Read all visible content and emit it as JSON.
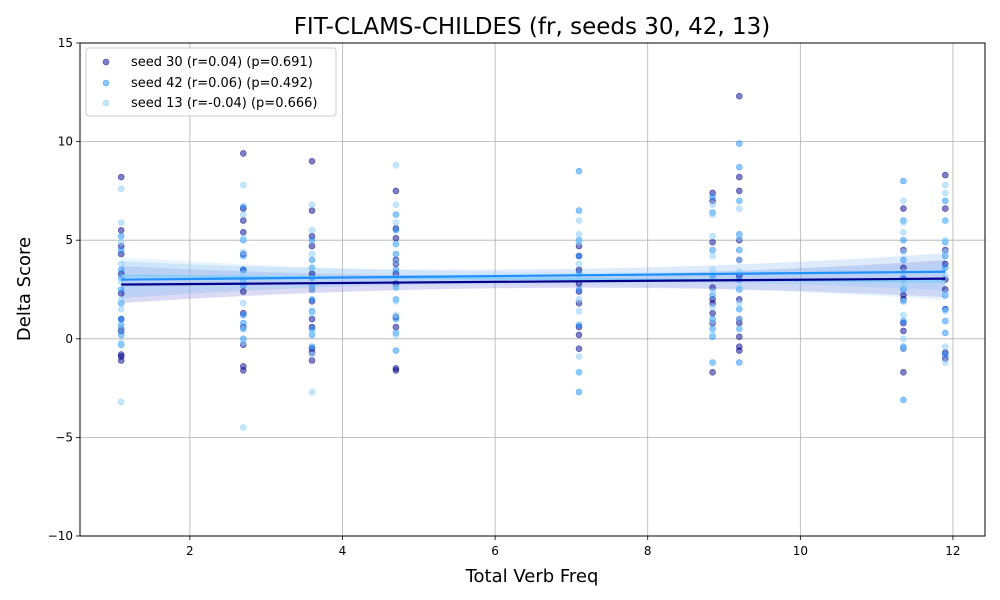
{
  "chart_data": {
    "type": "scatter",
    "title": "FIT-CLAMS-CHILDES (fr, seeds 30, 42, 13)",
    "xlabel": "Total Verb Freq",
    "ylabel": "Delta Score",
    "xlim": [
      0.56,
      12.42
    ],
    "ylim": [
      -10,
      15
    ],
    "xticks": [
      2,
      4,
      6,
      8,
      10,
      12
    ],
    "yticks": [
      -10,
      -5,
      0,
      5,
      10,
      15
    ],
    "grid": true,
    "legend_position": "top-left",
    "series": [
      {
        "name": "seed 30 (r=0.04) (p=0.691)",
        "color": "#00008B",
        "regression": {
          "x": [
            1.1,
            11.9
          ],
          "y": [
            2.75,
            3.05
          ]
        },
        "x": [
          1.1,
          1.1,
          1.1,
          1.1,
          1.1,
          1.1,
          1.1,
          1.1,
          1.1,
          1.1,
          1.1,
          1.1,
          2.7,
          2.7,
          2.7,
          2.7,
          2.7,
          2.7,
          2.7,
          2.7,
          2.7,
          2.7,
          2.7,
          2.7,
          3.6,
          3.6,
          3.6,
          3.6,
          3.6,
          3.6,
          3.6,
          3.6,
          3.6,
          3.6,
          3.6,
          3.6,
          4.7,
          4.7,
          4.7,
          4.7,
          4.7,
          4.7,
          4.7,
          4.7,
          4.7,
          4.7,
          4.7,
          7.1,
          7.1,
          7.1,
          7.1,
          7.1,
          7.1,
          7.1,
          7.1,
          7.1,
          8.85,
          8.85,
          8.85,
          8.85,
          8.85,
          8.85,
          8.85,
          8.85,
          8.85,
          9.2,
          9.2,
          9.2,
          9.2,
          9.2,
          9.2,
          9.2,
          9.2,
          9.2,
          9.2,
          9.2,
          9.2,
          11.35,
          11.35,
          11.35,
          11.35,
          11.35,
          11.35,
          11.35,
          11.35,
          11.35,
          11.35,
          11.9,
          11.9,
          11.9,
          11.9,
          11.9,
          11.9,
          11.9,
          11.9,
          11.9
        ],
        "y": [
          8.2,
          5.5,
          4.7,
          4.3,
          3.3,
          2.3,
          1.0,
          0.5,
          0.4,
          -0.8,
          -0.9,
          -1.1,
          9.4,
          6.6,
          6.0,
          5.4,
          4.3,
          3.5,
          2.4,
          1.3,
          0.6,
          -0.3,
          -1.4,
          -1.6,
          9.0,
          6.5,
          5.2,
          4.7,
          3.3,
          2.5,
          1.9,
          1.0,
          0.6,
          -0.5,
          -0.7,
          -1.1,
          7.5,
          5.6,
          5.1,
          4.0,
          3.8,
          3.3,
          2.8,
          1.1,
          0.6,
          -1.5,
          -1.6,
          4.7,
          4.2,
          3.5,
          2.8,
          2.4,
          1.8,
          0.6,
          0.2,
          -0.5,
          7.4,
          7.0,
          4.9,
          2.6,
          2.0,
          1.8,
          1.3,
          0.8,
          -1.7,
          12.3,
          8.2,
          7.5,
          5.0,
          4.0,
          3.2,
          2.0,
          1.0,
          0.8,
          0.1,
          -0.4,
          -0.6,
          6.6,
          4.5,
          3.6,
          3.0,
          2.2,
          2.0,
          0.8,
          0.4,
          -0.5,
          -1.7,
          8.3,
          6.6,
          4.5,
          3.8,
          3.0,
          2.5,
          1.5,
          -0.7,
          -1.0
        ]
      },
      {
        "name": "seed 42 (r=0.06) (p=0.492)",
        "color": "#1E90FF",
        "regression": {
          "x": [
            1.1,
            11.9
          ],
          "y": [
            3.0,
            3.4
          ]
        },
        "x": [
          1.1,
          1.1,
          1.1,
          1.1,
          1.1,
          1.1,
          1.1,
          1.1,
          1.1,
          1.1,
          2.7,
          2.7,
          2.7,
          2.7,
          2.7,
          2.7,
          2.7,
          2.7,
          2.7,
          2.7,
          3.6,
          3.6,
          3.6,
          3.6,
          3.6,
          3.6,
          3.6,
          3.6,
          3.6,
          3.6,
          4.7,
          4.7,
          4.7,
          4.7,
          4.7,
          4.7,
          4.7,
          4.7,
          4.7,
          4.7,
          7.1,
          7.1,
          7.1,
          7.1,
          7.1,
          7.1,
          7.1,
          7.1,
          7.1,
          8.85,
          8.85,
          8.85,
          8.85,
          8.85,
          8.85,
          8.85,
          8.85,
          8.85,
          9.2,
          9.2,
          9.2,
          9.2,
          9.2,
          9.2,
          9.2,
          9.2,
          9.2,
          9.2,
          11.35,
          11.35,
          11.35,
          11.35,
          11.35,
          11.35,
          11.35,
          11.35,
          11.35,
          11.35,
          11.9,
          11.9,
          11.9,
          11.9,
          11.9,
          11.9,
          11.9,
          11.9,
          11.9,
          11.9
        ],
        "y": [
          5.2,
          4.5,
          3.5,
          3.1,
          2.5,
          1.8,
          1.0,
          0.7,
          0.2,
          -0.3,
          6.7,
          5.0,
          4.2,
          3.5,
          3.0,
          2.7,
          1.2,
          0.8,
          0.5,
          0.0,
          5.0,
          4.0,
          3.6,
          3.1,
          2.7,
          2.0,
          1.4,
          0.5,
          0.2,
          -0.4,
          6.3,
          5.5,
          4.8,
          4.3,
          3.5,
          2.6,
          2.0,
          1.0,
          0.3,
          -0.6,
          8.5,
          6.5,
          5.0,
          4.2,
          3.3,
          2.5,
          0.7,
          -1.7,
          -2.7,
          7.2,
          6.4,
          4.5,
          3.2,
          2.2,
          1.0,
          0.5,
          0.1,
          -1.2,
          9.9,
          8.7,
          7.0,
          5.3,
          4.5,
          3.0,
          2.5,
          1.5,
          0.5,
          -1.2,
          8.0,
          6.0,
          5.0,
          4.0,
          3.1,
          2.5,
          1.9,
          0.9,
          -0.4,
          -3.1,
          7.0,
          6.0,
          4.9,
          4.2,
          3.6,
          2.2,
          1.5,
          0.9,
          0.3,
          -0.8
        ]
      },
      {
        "name": "seed 13 (r=-0.04) (p=0.666)",
        "color": "#87CEFA",
        "regression": {
          "x": [
            1.1,
            11.9
          ],
          "y": [
            3.2,
            2.9
          ]
        },
        "x": [
          1.1,
          1.1,
          1.1,
          1.1,
          1.1,
          1.1,
          1.1,
          1.1,
          1.1,
          1.1,
          2.7,
          2.7,
          2.7,
          2.7,
          2.7,
          2.7,
          2.7,
          2.7,
          2.7,
          2.7,
          3.6,
          3.6,
          3.6,
          3.6,
          3.6,
          3.6,
          3.6,
          3.6,
          3.6,
          4.7,
          4.7,
          4.7,
          4.7,
          4.7,
          4.7,
          4.7,
          4.7,
          4.7,
          4.7,
          7.1,
          7.1,
          7.1,
          7.1,
          7.1,
          7.1,
          7.1,
          7.1,
          7.1,
          8.85,
          8.85,
          8.85,
          8.85,
          8.85,
          8.85,
          8.85,
          8.85,
          8.85,
          8.85,
          9.2,
          9.2,
          9.2,
          9.2,
          9.2,
          9.2,
          9.2,
          9.2,
          9.2,
          11.35,
          11.35,
          11.35,
          11.35,
          11.35,
          11.35,
          11.35,
          11.35,
          11.35,
          11.35,
          11.9,
          11.9,
          11.9,
          11.9,
          11.9,
          11.9,
          11.9,
          11.9,
          11.9,
          11.9
        ],
        "y": [
          7.6,
          5.9,
          4.9,
          3.8,
          2.9,
          2.0,
          1.5,
          0.5,
          -0.2,
          -3.2,
          7.8,
          6.3,
          5.1,
          4.4,
          3.3,
          2.9,
          1.8,
          0.5,
          -0.2,
          -4.5,
          6.8,
          5.5,
          4.3,
          3.6,
          2.5,
          1.3,
          0.3,
          -0.8,
          -2.7,
          8.8,
          6.8,
          5.9,
          4.8,
          3.9,
          3.1,
          2.6,
          1.9,
          1.2,
          0.2,
          6.0,
          5.3,
          4.9,
          3.8,
          3.0,
          2.0,
          1.4,
          -0.9,
          -1.7,
          6.8,
          6.3,
          5.2,
          4.2,
          3.5,
          2.4,
          1.6,
          0.9,
          0.2,
          -1.2,
          7.0,
          6.6,
          5.1,
          4.0,
          3.4,
          2.6,
          1.8,
          1.0,
          0.5,
          7.0,
          5.9,
          5.4,
          4.4,
          3.4,
          2.7,
          1.9,
          1.2,
          0.0,
          -0.5,
          7.8,
          7.4,
          6.0,
          5.0,
          4.4,
          3.2,
          2.3,
          1.4,
          -0.4,
          -1.2
        ]
      }
    ]
  }
}
